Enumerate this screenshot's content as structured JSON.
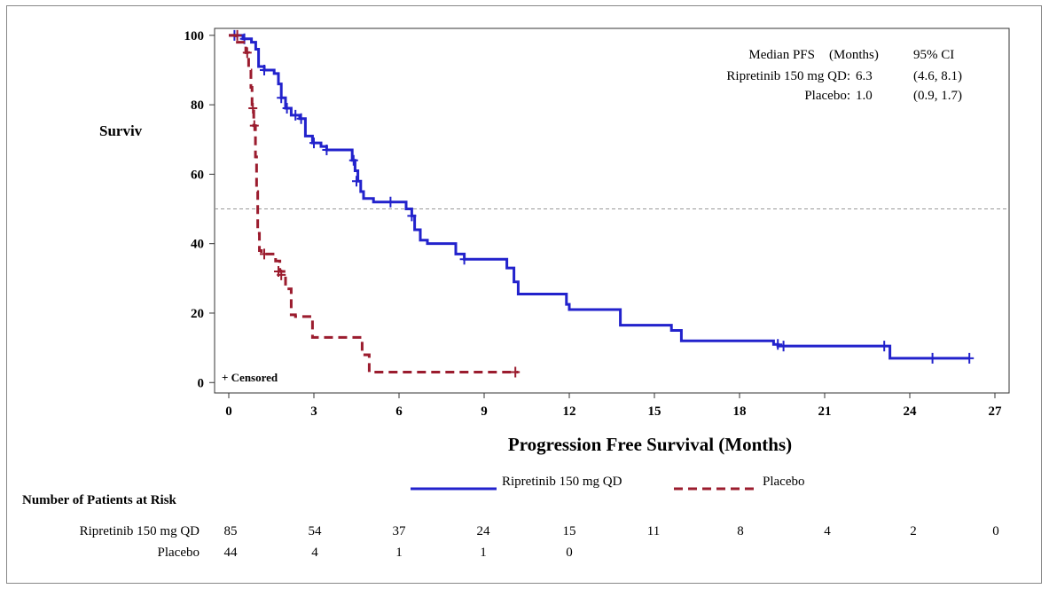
{
  "chart_data": {
    "type": "line",
    "subtype": "kaplan-meier",
    "ylabel": "Surviv",
    "xlabel": "Progression Free Survival (Months)",
    "xlim": [
      -0.5,
      27.5
    ],
    "ylim": [
      -3,
      102
    ],
    "x_ticks": [
      "0",
      "3",
      "6",
      "9",
      "12",
      "15",
      "18",
      "21",
      "24",
      "27"
    ],
    "y_ticks": [
      "0",
      "20",
      "40",
      "60",
      "80",
      "100"
    ],
    "reference_line_y": 50,
    "censored_label": "+ Censored",
    "stats_table": {
      "header": [
        "Median PFS",
        "(Months)",
        "95% CI"
      ],
      "rows": [
        {
          "label": "Ripretinib 150 mg QD:",
          "median": "6.3",
          "ci": "(4.6, 8.1)"
        },
        {
          "label": "Placebo:",
          "median": "1.0",
          "ci": "(0.9, 1.7)"
        }
      ]
    },
    "series": [
      {
        "name": "Ripretinib 150 mg QD",
        "color": "#2222cc",
        "dash": false,
        "steps": [
          [
            0,
            100
          ],
          [
            0.5,
            99
          ],
          [
            0.8,
            98
          ],
          [
            0.95,
            96
          ],
          [
            1.05,
            91
          ],
          [
            1.25,
            90
          ],
          [
            1.6,
            89
          ],
          [
            1.75,
            86
          ],
          [
            1.85,
            82
          ],
          [
            2.0,
            79
          ],
          [
            2.2,
            77
          ],
          [
            2.5,
            76
          ],
          [
            2.7,
            71
          ],
          [
            2.95,
            69
          ],
          [
            3.25,
            68
          ],
          [
            3.45,
            67
          ],
          [
            4.15,
            67
          ],
          [
            4.35,
            64
          ],
          [
            4.45,
            61
          ],
          [
            4.55,
            58
          ],
          [
            4.65,
            55
          ],
          [
            4.75,
            53
          ],
          [
            5.1,
            52
          ],
          [
            5.9,
            52
          ],
          [
            6.25,
            50
          ],
          [
            6.45,
            48
          ],
          [
            6.55,
            44
          ],
          [
            6.75,
            41
          ],
          [
            7.0,
            40
          ],
          [
            8.0,
            37
          ],
          [
            8.3,
            35.5
          ],
          [
            9.6,
            35.5
          ],
          [
            9.8,
            33
          ],
          [
            10.05,
            29
          ],
          [
            10.2,
            25.5
          ],
          [
            11.9,
            22.5
          ],
          [
            12.0,
            21
          ],
          [
            13.8,
            16.5
          ],
          [
            15.6,
            15
          ],
          [
            15.95,
            12
          ],
          [
            19.2,
            11
          ],
          [
            19.35,
            10.5
          ],
          [
            23.3,
            7
          ],
          [
            26.1,
            7
          ]
        ],
        "censored": [
          [
            0.2,
            100
          ],
          [
            0.55,
            99
          ],
          [
            1.25,
            90
          ],
          [
            1.85,
            82
          ],
          [
            2.05,
            79
          ],
          [
            2.35,
            77
          ],
          [
            2.55,
            76
          ],
          [
            3.0,
            69
          ],
          [
            3.45,
            67
          ],
          [
            4.4,
            64
          ],
          [
            4.5,
            58
          ],
          [
            5.7,
            52
          ],
          [
            6.45,
            48
          ],
          [
            8.3,
            35.5
          ],
          [
            19.35,
            11
          ],
          [
            19.55,
            10.5
          ],
          [
            23.1,
            10.5
          ],
          [
            24.8,
            7
          ],
          [
            26.1,
            7
          ]
        ]
      },
      {
        "name": "Placebo",
        "color": "#9b1c2e",
        "dash": true,
        "steps": [
          [
            0,
            100
          ],
          [
            0.25,
            98
          ],
          [
            0.6,
            95
          ],
          [
            0.7,
            90
          ],
          [
            0.78,
            85
          ],
          [
            0.82,
            79
          ],
          [
            0.88,
            74
          ],
          [
            0.94,
            65
          ],
          [
            0.98,
            55
          ],
          [
            1.02,
            43
          ],
          [
            1.08,
            38
          ],
          [
            1.15,
            37
          ],
          [
            1.55,
            37
          ],
          [
            1.65,
            35
          ],
          [
            1.8,
            32
          ],
          [
            2.0,
            27
          ],
          [
            2.2,
            19.5
          ],
          [
            2.35,
            19
          ],
          [
            2.95,
            13
          ],
          [
            4.55,
            13
          ],
          [
            4.7,
            8
          ],
          [
            4.95,
            3
          ],
          [
            10.2,
            3
          ]
        ],
        "censored": [
          [
            0.3,
            100
          ],
          [
            0.65,
            95
          ],
          [
            0.85,
            79
          ],
          [
            0.9,
            74
          ],
          [
            1.25,
            37
          ],
          [
            1.75,
            32
          ],
          [
            1.85,
            31
          ],
          [
            10.1,
            3
          ]
        ]
      }
    ],
    "legend": [
      "Ripretinib 150 mg QD",
      "Placebo"
    ],
    "legend_placement": "bottom"
  },
  "risk_table": {
    "title": "Number of Patients at Risk",
    "rows": [
      {
        "label": "Ripretinib 150 mg QD",
        "values": [
          "85",
          "54",
          "37",
          "24",
          "15",
          "11",
          "8",
          "4",
          "2",
          "0"
        ]
      },
      {
        "label": "Placebo",
        "values": [
          "44",
          "4",
          "1",
          "1",
          "0"
        ]
      }
    ]
  }
}
